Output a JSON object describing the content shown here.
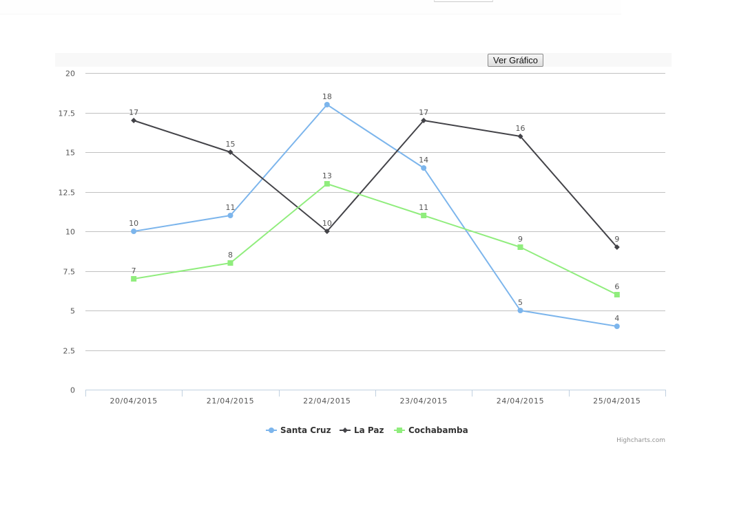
{
  "page": {
    "button_label": "Ver Gráfico"
  },
  "colors": {
    "santa_cruz": "#7cb5ec",
    "la_paz": "#434348",
    "cochabamba": "#90ed7d",
    "grid": "#c0c0c0",
    "axis": "#c0d0e0"
  },
  "legend": {
    "items": [
      {
        "label": "Santa Cruz",
        "symbol": "circle"
      },
      {
        "label": "La Paz",
        "symbol": "diamond"
      },
      {
        "label": "Cochabamba",
        "symbol": "square"
      }
    ]
  },
  "credits": "Highcharts.com",
  "chart_data": {
    "type": "line",
    "title": "",
    "xlabel": "",
    "ylabel": "",
    "categories": [
      "20/04/2015",
      "21/04/2015",
      "22/04/2015",
      "23/04/2015",
      "24/04/2015",
      "25/04/2015"
    ],
    "series": [
      {
        "name": "Santa Cruz",
        "values": [
          10,
          11,
          18,
          14,
          5,
          4
        ]
      },
      {
        "name": "La Paz",
        "values": [
          17,
          15,
          10,
          17,
          16,
          9
        ]
      },
      {
        "name": "Cochabamba",
        "values": [
          7,
          8,
          13,
          11,
          9,
          6
        ]
      }
    ],
    "ylim": [
      0,
      20
    ],
    "yticks": [
      "0",
      "2.5",
      "5",
      "7.5",
      "10",
      "12.5",
      "15",
      "17.5",
      "20"
    ],
    "grid": true,
    "data_labels": true,
    "legend_position": "bottom-center"
  }
}
